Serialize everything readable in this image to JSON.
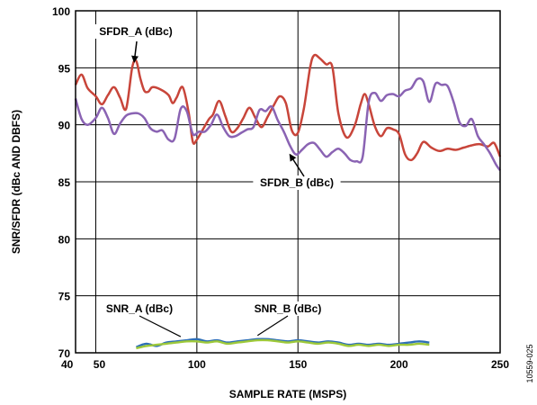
{
  "chart_data": {
    "type": "line",
    "xlabel": "SAMPLE RATE (MSPS)",
    "ylabel": "SNR/SFDR (dBc AND DBFS)",
    "xlim": [
      40,
      250
    ],
    "ylim": [
      70,
      100
    ],
    "x_ticks": [
      40,
      50,
      100,
      150,
      200,
      250
    ],
    "y_ticks": [
      70,
      75,
      80,
      85,
      90,
      95,
      100
    ],
    "grid": true,
    "figure_id": "10559-025",
    "series": [
      {
        "name": "SFDR_A (dBc)",
        "color": "#c8453a",
        "x": [
          40,
          43,
          46,
          50,
          53,
          56,
          59,
          62,
          65,
          68,
          70,
          72,
          74,
          76,
          78,
          82,
          86,
          88,
          90,
          93,
          96,
          98,
          100,
          103,
          106,
          108,
          111,
          114,
          117,
          120,
          123,
          126,
          129,
          132,
          135,
          138,
          141,
          144,
          147,
          150,
          153,
          156,
          158,
          161,
          164,
          167,
          170,
          174,
          178,
          181,
          183,
          185,
          188,
          191,
          194,
          197,
          200,
          203,
          206,
          209,
          212,
          216,
          220,
          224,
          228,
          232,
          236,
          240,
          244,
          247,
          250
        ],
        "y": [
          93.5,
          94.4,
          93.2,
          92.5,
          91.8,
          92.6,
          93.3,
          92.4,
          91.4,
          95.0,
          95.6,
          94.1,
          93.0,
          92.9,
          93.3,
          93.1,
          92.6,
          91.9,
          92.4,
          93.3,
          91.0,
          88.5,
          88.7,
          89.6,
          90.5,
          90.9,
          92.1,
          90.8,
          89.4,
          89.7,
          90.6,
          91.5,
          90.6,
          89.8,
          90.7,
          91.7,
          92.5,
          91.9,
          89.5,
          89.3,
          91.5,
          95.0,
          96.1,
          95.8,
          95.3,
          95.1,
          91.0,
          88.9,
          89.9,
          91.8,
          92.7,
          91.8,
          89.9,
          89.0,
          89.7,
          89.6,
          89.2,
          87.4,
          86.9,
          87.5,
          88.5,
          88.0,
          87.7,
          87.9,
          87.8,
          88.0,
          88.2,
          88.3,
          88.1,
          88.4,
          87.2
        ]
      },
      {
        "name": "SFDR_B (dBc)",
        "color": "#8a63b3",
        "x": [
          40,
          43,
          46,
          50,
          53,
          56,
          59,
          62,
          65,
          68,
          71,
          74,
          77,
          80,
          83,
          86,
          89,
          92,
          95,
          98,
          101,
          104,
          107,
          110,
          113,
          116,
          119,
          122,
          125,
          128,
          131,
          134,
          137,
          140,
          143,
          146,
          149,
          152,
          155,
          158,
          161,
          164,
          167,
          170,
          173,
          176,
          179,
          182,
          185,
          188,
          191,
          194,
          197,
          200,
          203,
          206,
          209,
          212,
          215,
          218,
          221,
          224,
          227,
          230,
          233,
          236,
          239,
          242,
          245,
          248,
          250
        ],
        "y": [
          92.3,
          90.5,
          90.0,
          90.6,
          91.5,
          90.6,
          89.2,
          90.1,
          90.8,
          91.0,
          91.0,
          90.6,
          89.7,
          89.4,
          89.5,
          88.7,
          88.8,
          91.4,
          91.2,
          89.2,
          89.4,
          89.4,
          90.0,
          90.9,
          89.8,
          89.0,
          89.0,
          89.3,
          89.6,
          89.8,
          91.3,
          91.2,
          91.6,
          90.4,
          89.4,
          88.2,
          87.4,
          87.8,
          88.3,
          88.4,
          87.8,
          87.2,
          87.6,
          87.9,
          87.5,
          86.9,
          86.8,
          87.2,
          92.0,
          92.8,
          92.1,
          92.6,
          92.7,
          92.5,
          93.0,
          93.2,
          94.0,
          93.8,
          92.0,
          93.6,
          93.5,
          93.4,
          92.0,
          90.2,
          89.9,
          90.5,
          89.0,
          88.3,
          87.5,
          86.5,
          86.0
        ]
      },
      {
        "name": "SNR_A (dBc)",
        "color": "#2e6fb6",
        "x": [
          70,
          75,
          80,
          85,
          90,
          95,
          100,
          105,
          110,
          115,
          120,
          125,
          130,
          135,
          140,
          145,
          150,
          155,
          160,
          165,
          170,
          175,
          180,
          185,
          190,
          195,
          200,
          205,
          210,
          215
        ],
        "y": [
          70.5,
          70.8,
          70.6,
          70.9,
          71.0,
          71.1,
          71.2,
          71.0,
          71.1,
          70.9,
          71.0,
          71.1,
          71.2,
          71.2,
          71.1,
          71.0,
          71.1,
          71.0,
          70.9,
          71.0,
          70.9,
          70.7,
          70.8,
          70.7,
          70.8,
          70.7,
          70.8,
          70.9,
          71.0,
          70.9
        ]
      },
      {
        "name": "SNR_B (dBc)",
        "color": "#9ec93a",
        "x": [
          70,
          75,
          80,
          85,
          90,
          95,
          100,
          105,
          110,
          115,
          120,
          125,
          130,
          135,
          140,
          145,
          150,
          155,
          160,
          165,
          170,
          175,
          180,
          185,
          190,
          195,
          200,
          205,
          210,
          215
        ],
        "y": [
          70.4,
          70.6,
          70.7,
          70.8,
          70.9,
          71.0,
          71.0,
          70.9,
          71.0,
          70.8,
          70.9,
          71.0,
          71.1,
          71.1,
          71.0,
          70.9,
          71.0,
          70.9,
          70.8,
          70.9,
          70.8,
          70.6,
          70.7,
          70.6,
          70.7,
          70.6,
          70.7,
          70.7,
          70.8,
          70.7
        ]
      }
    ],
    "annotations": [
      {
        "text": "SFDR_A (dBc)",
        "series": 0,
        "point_x": 69,
        "point_y": 95.5
      },
      {
        "text": "SFDR_B (dBc)",
        "series": 1,
        "point_x": 146,
        "point_y": 87.4
      },
      {
        "text": "SNR_A (dBc)",
        "series": 2,
        "point_x": 92,
        "point_y": 71.1
      },
      {
        "text": "SNR_B (dBc)",
        "series": 3,
        "point_x": 130,
        "point_y": 71.2
      }
    ]
  }
}
